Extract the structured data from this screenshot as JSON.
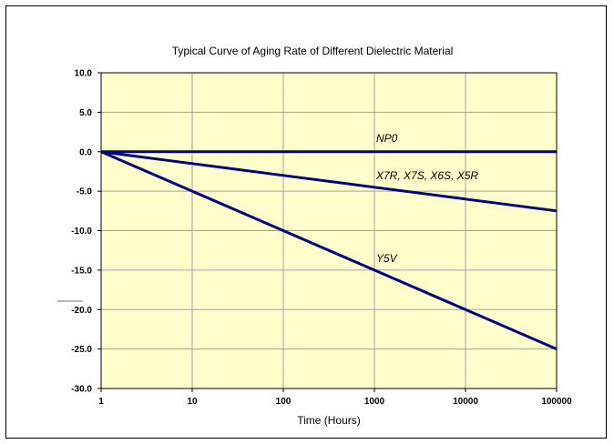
{
  "chart_data": {
    "type": "line",
    "title": "Typical Curve of Aging Rate of Different Dielectric Material",
    "xlabel": "Time (Hours)",
    "ylabel": "",
    "x_scale": "log",
    "xlim": [
      1,
      100000
    ],
    "ylim": [
      -30,
      10
    ],
    "x_ticks": [
      "1",
      "10",
      "100",
      "1000",
      "10000",
      "100000"
    ],
    "y_ticks": [
      "10.0",
      "5.0",
      "0.0",
      "-5.0",
      "-10.0",
      "-15.0",
      "-20.0",
      "-25.0",
      "-30.0"
    ],
    "grid": true,
    "series": [
      {
        "name": "NP0",
        "x": [
          1,
          100000
        ],
        "y": [
          0,
          0
        ]
      },
      {
        "name": "X7R, X7S, X6S, X5R",
        "x": [
          1,
          10,
          100,
          1000,
          10000,
          100000
        ],
        "y": [
          0,
          -1.5,
          -3.0,
          -4.5,
          -6.0,
          -7.5
        ]
      },
      {
        "name": "Y5V",
        "x": [
          1,
          10,
          100,
          1000,
          10000,
          100000
        ],
        "y": [
          0,
          -5,
          -10,
          -15,
          -20,
          -25
        ]
      }
    ],
    "colors": {
      "plot_background": "#FFFFCC",
      "line": "#000080",
      "grid": "#A0A0A0"
    }
  }
}
